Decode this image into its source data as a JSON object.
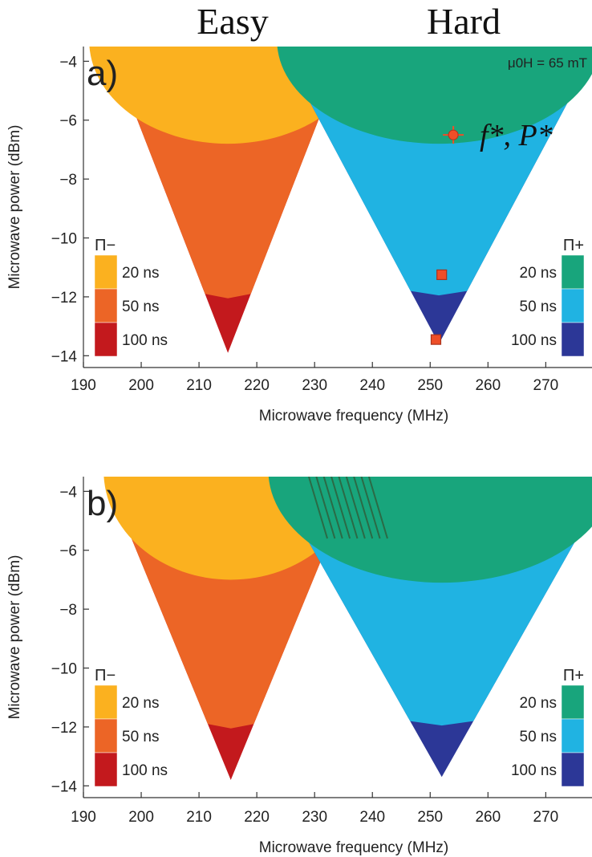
{
  "header": {
    "left": "Easy",
    "right": "Hard"
  },
  "chart_data": [
    {
      "type": "heatmap",
      "panel_label": "a)",
      "annotation": "μ0H = 65 mT",
      "marker_label": "f*, P*",
      "xlabel": "Microwave frequency (MHz)",
      "ylabel": "Microwave power (dBm)",
      "xlim": [
        190,
        278
      ],
      "ylim": [
        -14.4,
        -3.5
      ],
      "xticks": [
        190,
        200,
        210,
        220,
        230,
        240,
        250,
        260,
        270
      ],
      "yticks": [
        -4,
        -6,
        -8,
        -10,
        -12,
        -14
      ],
      "colors": {
        "minus_20": "#fbb11f",
        "minus_50": "#ec6526",
        "minus_100": "#c3191d",
        "plus_20": "#18a57c",
        "plus_50": "#20b3e2",
        "plus_100": "#2c3797",
        "marker": "#ee4e28"
      },
      "legend_minus": {
        "title": "Π−",
        "placement": "bottom-left",
        "entries": [
          "20 ns",
          "50 ns",
          "100 ns"
        ]
      },
      "legend_plus": {
        "title": "Π+",
        "placement": "bottom-right",
        "entries": [
          "20 ns",
          "50 ns",
          "100 ns"
        ]
      },
      "regions": {
        "easy": {
          "center": 215,
          "tip": -13.9,
          "top_halfwidth": 21,
          "p20_bottom": -6.8,
          "p50_bottom": -11.9,
          "p20_halfwidth": 24
        },
        "hard": {
          "center": 251.5,
          "tip": -13.6,
          "top_halfwidth": 28,
          "p20_bottom": -6.8,
          "p50_bottom": -11.8,
          "p20_halfwidth": 28
        }
      },
      "markers": [
        {
          "x": 254,
          "y": -6.5,
          "error": true
        },
        {
          "x": 252,
          "y": -11.25,
          "error": false
        },
        {
          "x": 251,
          "y": -13.45,
          "error": false
        }
      ]
    },
    {
      "type": "heatmap",
      "panel_label": "b)",
      "xlabel": "Microwave frequency (MHz)",
      "ylabel": "Microwave power (dBm)",
      "xlim": [
        190,
        278
      ],
      "ylim": [
        -14.4,
        -3.5
      ],
      "xticks": [
        190,
        200,
        210,
        220,
        230,
        240,
        250,
        260,
        270
      ],
      "yticks": [
        -4,
        -6,
        -8,
        -10,
        -12,
        -14
      ],
      "colors": {
        "minus_20": "#fbb11f",
        "minus_50": "#ec6526",
        "minus_100": "#c3191d",
        "plus_20": "#18a57c",
        "plus_50": "#20b3e2",
        "plus_100": "#2c3797"
      },
      "legend_minus": {
        "title": "Π−",
        "placement": "bottom-left",
        "entries": [
          "20 ns",
          "50 ns",
          "100 ns"
        ]
      },
      "legend_plus": {
        "title": "Π+",
        "placement": "bottom-right",
        "entries": [
          "20 ns",
          "50 ns",
          "100 ns"
        ]
      },
      "regions": {
        "easy": {
          "center": 215.5,
          "tip": -13.8,
          "top_halfwidth": 22,
          "p20_bottom": -7.0,
          "p50_bottom": -11.9,
          "p20_halfwidth": 22
        },
        "hard": {
          "center": 252,
          "tip": -13.7,
          "top_halfwidth": 30,
          "p20_bottom": -7.1,
          "p50_bottom": -11.8,
          "p20_halfwidth": 30
        }
      },
      "markers": []
    }
  ]
}
